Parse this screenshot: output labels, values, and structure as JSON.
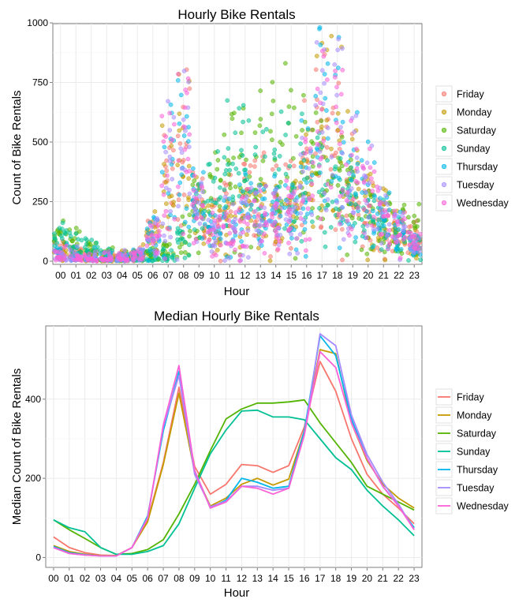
{
  "chart_data": [
    {
      "type": "scatter",
      "title": "Hourly Bike Rentals",
      "xlabel": "Hour",
      "ylabel": "Count of Bike Rentals",
      "grid": true,
      "legend_position": "right",
      "categories": [
        "00",
        "01",
        "02",
        "03",
        "04",
        "05",
        "06",
        "07",
        "08",
        "09",
        "10",
        "11",
        "12",
        "13",
        "14",
        "15",
        "16",
        "17",
        "18",
        "19",
        "20",
        "21",
        "22",
        "23"
      ],
      "ylim": [
        0,
        1010
      ],
      "yticks": [
        0,
        250,
        500,
        750,
        1000
      ],
      "series": [
        {
          "name": "Friday",
          "color": "#F8766D",
          "typical": [
            50,
            25,
            15,
            8,
            5,
            25,
            110,
            330,
            440,
            230,
            160,
            200,
            240,
            235,
            220,
            235,
            340,
            500,
            420,
            300,
            200,
            160,
            130,
            90
          ]
        },
        {
          "name": "Monday",
          "color": "#C49A00",
          "typical": [
            30,
            15,
            8,
            5,
            5,
            25,
            110,
            310,
            420,
            220,
            130,
            150,
            190,
            200,
            185,
            200,
            330,
            520,
            500,
            340,
            240,
            180,
            125,
            75
          ]
        },
        {
          "name": "Saturday",
          "color": "#53B400",
          "typical": [
            95,
            70,
            50,
            25,
            8,
            10,
            20,
            45,
            110,
            190,
            270,
            350,
            375,
            390,
            390,
            395,
            400,
            340,
            290,
            240,
            180,
            160,
            140,
            120
          ]
        },
        {
          "name": "Sunday",
          "color": "#00C094",
          "typical": [
            95,
            75,
            65,
            25,
            8,
            8,
            15,
            30,
            85,
            180,
            265,
            320,
            370,
            370,
            355,
            355,
            345,
            300,
            250,
            220,
            170,
            130,
            95,
            55
          ]
        },
        {
          "name": "Thursday",
          "color": "#00B6EB",
          "typical": [
            28,
            12,
            7,
            4,
            4,
            25,
            100,
            320,
            470,
            220,
            125,
            145,
            195,
            190,
            175,
            180,
            320,
            560,
            510,
            350,
            250,
            180,
            130,
            75
          ]
        },
        {
          "name": "Tuesday",
          "color": "#A58AFF",
          "typical": [
            25,
            10,
            6,
            4,
            4,
            25,
            100,
            330,
            460,
            210,
            125,
            140,
            180,
            180,
            170,
            175,
            310,
            565,
            535,
            360,
            260,
            190,
            135,
            70
          ]
        },
        {
          "name": "Wednesday",
          "color": "#FB61D7",
          "typical": [
            25,
            10,
            6,
            4,
            4,
            25,
            100,
            330,
            480,
            220,
            125,
            140,
            180,
            175,
            160,
            175,
            310,
            520,
            480,
            340,
            250,
            180,
            130,
            70
          ]
        }
      ]
    },
    {
      "type": "line",
      "title": "Median Hourly Bike Rentals",
      "xlabel": "Hour",
      "ylabel": "Median Count of Bike Rentals",
      "grid": true,
      "legend_position": "right",
      "categories": [
        "00",
        "01",
        "02",
        "03",
        "04",
        "05",
        "06",
        "07",
        "08",
        "09",
        "10",
        "11",
        "12",
        "13",
        "14",
        "15",
        "16",
        "17",
        "18",
        "19",
        "20",
        "21",
        "22",
        "23"
      ],
      "ylim": [
        -25,
        585
      ],
      "yticks": [
        0,
        200,
        400
      ],
      "series": [
        {
          "name": "Friday",
          "color": "#F8766D",
          "values": [
            52,
            25,
            12,
            6,
            5,
            25,
            95,
            240,
            430,
            230,
            160,
            185,
            235,
            232,
            215,
            232,
            330,
            495,
            420,
            300,
            210,
            160,
            125,
            85
          ]
        },
        {
          "name": "Monday",
          "color": "#C49A00",
          "values": [
            30,
            15,
            8,
            5,
            5,
            25,
            90,
            235,
            415,
            215,
            130,
            150,
            185,
            200,
            183,
            198,
            320,
            525,
            515,
            340,
            245,
            185,
            150,
            125
          ]
        },
        {
          "name": "Saturday",
          "color": "#53B400",
          "values": [
            95,
            70,
            48,
            25,
            8,
            10,
            20,
            45,
            110,
            185,
            270,
            350,
            375,
            390,
            390,
            393,
            398,
            340,
            290,
            240,
            180,
            160,
            140,
            120
          ]
        },
        {
          "name": "Sunday",
          "color": "#00C094",
          "values": [
            95,
            75,
            65,
            25,
            8,
            8,
            15,
            30,
            85,
            175,
            262,
            322,
            370,
            372,
            355,
            355,
            348,
            300,
            252,
            222,
            170,
            130,
            95,
            55
          ]
        },
        {
          "name": "Thursday",
          "color": "#00B6EB",
          "values": [
            28,
            12,
            7,
            4,
            4,
            25,
            105,
            320,
            470,
            220,
            125,
            145,
            200,
            190,
            175,
            180,
            320,
            560,
            510,
            350,
            250,
            180,
            130,
            75
          ]
        },
        {
          "name": "Tuesday",
          "color": "#A58AFF",
          "values": [
            25,
            10,
            6,
            4,
            4,
            25,
            100,
            330,
            460,
            210,
            128,
            142,
            180,
            180,
            170,
            175,
            310,
            565,
            535,
            360,
            260,
            190,
            135,
            70
          ]
        },
        {
          "name": "Wednesday",
          "color": "#FB61D7",
          "values": [
            25,
            10,
            6,
            4,
            4,
            25,
            100,
            335,
            485,
            220,
            125,
            140,
            180,
            175,
            160,
            175,
            310,
            520,
            480,
            340,
            250,
            180,
            130,
            70
          ]
        }
      ]
    }
  ]
}
